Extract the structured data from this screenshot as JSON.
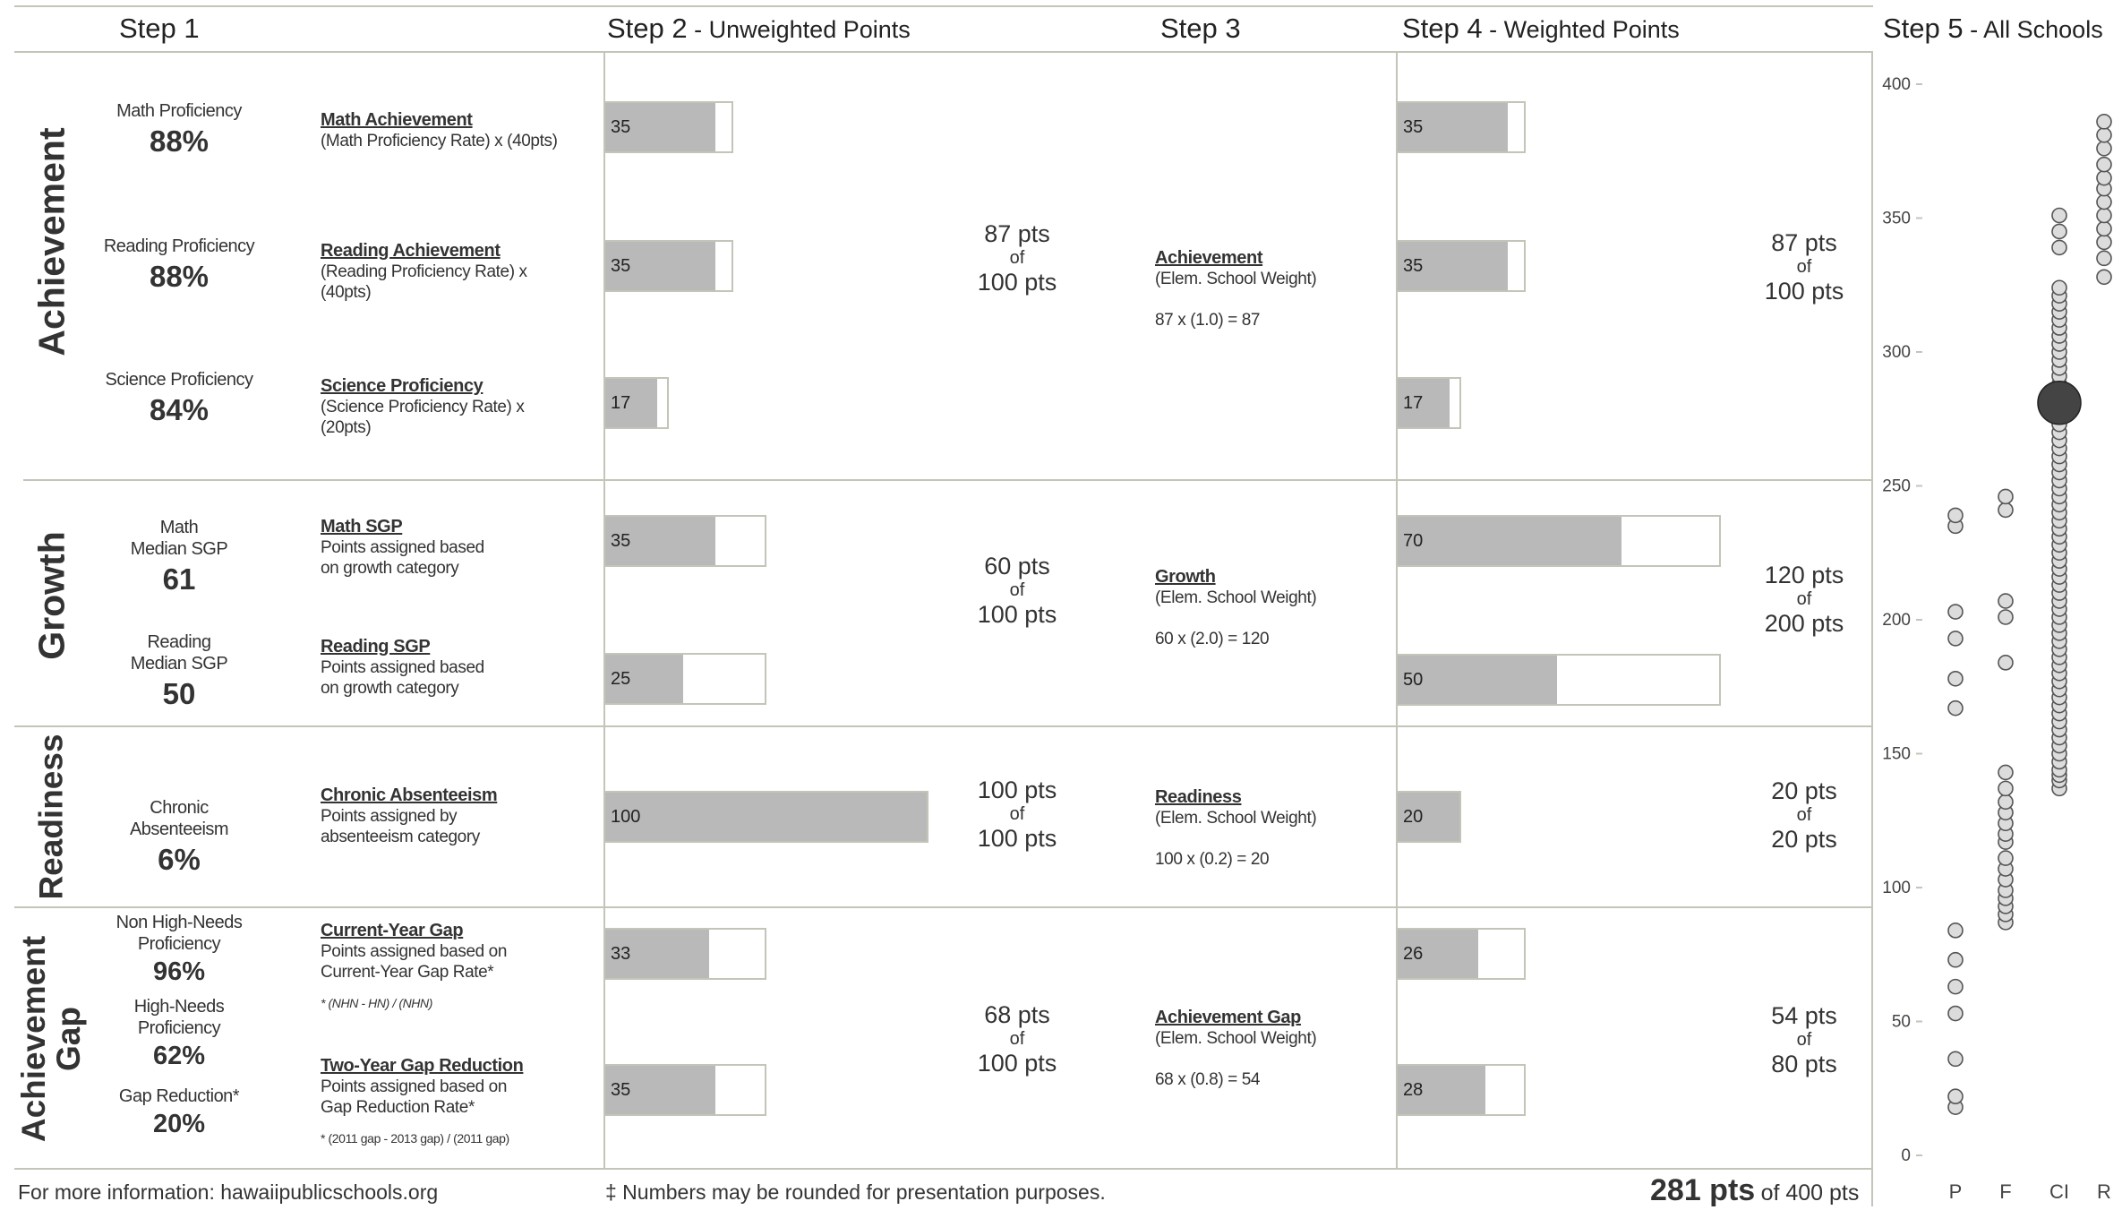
{
  "steps": {
    "s1": {
      "title": "Step 1",
      "sub": ""
    },
    "s2": {
      "title": "Step 2",
      "sub": " - Unweighted Points"
    },
    "s3": {
      "title": "Step 3",
      "sub": ""
    },
    "s4": {
      "title": "Step 4",
      "sub": " - Weighted Points"
    },
    "s5": {
      "title": "Step 5",
      "sub": " - All Schools"
    }
  },
  "sections": {
    "achievement": {
      "label": "Achievement",
      "metrics": [
        {
          "label": "Math Proficiency",
          "value": "88%"
        },
        {
          "label": "Reading Proficiency",
          "value": "88%"
        },
        {
          "label": "Science Proficiency",
          "value": "84%"
        }
      ],
      "calcs": [
        {
          "title": "Math Achievement",
          "desc": "(Math Proficiency Rate) x (40pts)"
        },
        {
          "title": "Reading Achievement",
          "desc": "(Reading Proficiency Rate) x (40pts)"
        },
        {
          "title": "Science Proficiency",
          "desc": "(Science Proficiency Rate) x (20pts)"
        }
      ],
      "unweighted": [
        {
          "label": "35",
          "value": 35,
          "max": 40
        },
        {
          "label": "35",
          "value": 35,
          "max": 40
        },
        {
          "label": "17",
          "value": 17,
          "max": 20
        }
      ],
      "unweighted_total": {
        "pts": "87 pts",
        "of": "of",
        "max": "100 pts"
      },
      "weight": {
        "title": "Achievement",
        "desc": "(Elem. School Weight)",
        "calc": "87 x (1.0) = 87"
      },
      "weighted": [
        {
          "label": "35",
          "value": 35,
          "max": 40
        },
        {
          "label": "35",
          "value": 35,
          "max": 40
        },
        {
          "label": "17",
          "value": 17,
          "max": 20
        }
      ],
      "weighted_total": {
        "pts": "87 pts",
        "of": "of",
        "max": "100 pts"
      }
    },
    "growth": {
      "label": "Growth",
      "metrics": [
        {
          "label": "Math\nMedian SGP",
          "value": "61"
        },
        {
          "label": "Reading\nMedian SGP",
          "value": "50"
        }
      ],
      "calcs": [
        {
          "title": "Math SGP",
          "desc": "Points assigned based\non growth category"
        },
        {
          "title": "Reading SGP",
          "desc": "Points assigned based\non growth category"
        }
      ],
      "unweighted": [
        {
          "label": "35",
          "value": 35,
          "max": 50
        },
        {
          "label": "25",
          "value": 25,
          "max": 50
        }
      ],
      "unweighted_total": {
        "pts": "60 pts",
        "of": "of",
        "max": "100 pts"
      },
      "weight": {
        "title": "Growth",
        "desc": "(Elem. School Weight)",
        "calc": "60 x (2.0) = 120"
      },
      "weighted": [
        {
          "label": "70",
          "value": 70,
          "max": 100
        },
        {
          "label": "50",
          "value": 50,
          "max": 100
        }
      ],
      "weighted_total": {
        "pts": "120 pts",
        "of": "of",
        "max": "200 pts"
      }
    },
    "readiness": {
      "label": "Readiness",
      "metrics": [
        {
          "label": "Chronic\nAbsenteeism",
          "value": "6%"
        }
      ],
      "calcs": [
        {
          "title": "Chronic Absenteeism",
          "desc": "Points assigned by\nabsenteeism category"
        }
      ],
      "unweighted": [
        {
          "label": "100",
          "value": 100,
          "max": 100
        }
      ],
      "unweighted_total": {
        "pts": "100 pts",
        "of": "of",
        "max": "100 pts"
      },
      "weight": {
        "title": "Readiness",
        "desc": "(Elem. School Weight)",
        "calc": "100 x (0.2) = 20"
      },
      "weighted": [
        {
          "label": "20",
          "value": 20,
          "max": 20
        }
      ],
      "weighted_total": {
        "pts": "20 pts",
        "of": "of",
        "max": "20 pts"
      }
    },
    "gap": {
      "label": "Achievement\nGap",
      "metrics": [
        {
          "label": "Non High-Needs\nProficiency",
          "value": "96%"
        },
        {
          "label": "High-Needs\nProficiency",
          "value": "62%"
        },
        {
          "label": "Gap Reduction*",
          "value": "20%"
        }
      ],
      "calcs": [
        {
          "title": "Current-Year Gap",
          "desc": "Points assigned based on\nCurrent-Year Gap Rate*",
          "note": "* (NHN - HN) / (NHN)"
        },
        {
          "title": "Two-Year Gap Reduction",
          "desc": "Points assigned based on\nGap Reduction Rate*",
          "note": "* (2011 gap - 2013 gap) / (2011 gap)"
        }
      ],
      "unweighted": [
        {
          "label": "33",
          "value": 33,
          "max": 50
        },
        {
          "label": "35",
          "value": 35,
          "max": 50
        }
      ],
      "unweighted_total": {
        "pts": "68 pts",
        "of": "of",
        "max": "100 pts"
      },
      "weight": {
        "title": "Achievement Gap",
        "desc": "(Elem. School Weight)",
        "calc": "68 x (0.8) = 54"
      },
      "weighted": [
        {
          "label": "26",
          "value": 26,
          "max": 40
        },
        {
          "label": "28",
          "value": 28,
          "max": 40
        }
      ],
      "weighted_total": {
        "pts": "54 pts",
        "of": "of",
        "max": "80 pts"
      }
    }
  },
  "footer": {
    "info": "For more information: hawaiipublicschools.org",
    "rounding": "‡ Numbers may be rounded for presentation purposes.",
    "total_pts": "281 pts",
    "total_of": "of 400 pts"
  },
  "colors": {
    "bar_fill": "#b9b9b9",
    "frame": "#c4c4b8",
    "highlight": "#444444"
  },
  "chart_data": {
    "type": "scatter",
    "title": "",
    "ylim": [
      0,
      400
    ],
    "yticks": [
      0,
      50,
      100,
      150,
      200,
      250,
      300,
      350,
      400
    ],
    "categories": [
      "P",
      "F",
      "CI",
      "R"
    ],
    "grid": false,
    "series": [
      {
        "category": "P",
        "values": [
          18,
          22,
          36,
          53,
          63,
          73,
          84,
          167,
          178,
          193,
          203,
          235,
          239
        ]
      },
      {
        "category": "F",
        "values": [
          87,
          90,
          93,
          96,
          99,
          103,
          107,
          111,
          117,
          120,
          124,
          128,
          132,
          137,
          143,
          184,
          201,
          207,
          241,
          246
        ]
      },
      {
        "category": "CI",
        "values": [
          137,
          140,
          142,
          144,
          147,
          150,
          153,
          156,
          159,
          162,
          165,
          168,
          171,
          174,
          177,
          180,
          183,
          186,
          189,
          192,
          195,
          198,
          201,
          204,
          207,
          210,
          213,
          216,
          219,
          222,
          225,
          228,
          231,
          234,
          237,
          240,
          243,
          246,
          249,
          252,
          255,
          258,
          261,
          264,
          267,
          270,
          273,
          276,
          279,
          282,
          285,
          288,
          291,
          294,
          297,
          300,
          303,
          306,
          309,
          312,
          315,
          318,
          321,
          324,
          339,
          345,
          351
        ]
      },
      {
        "category": "R",
        "values": [
          328,
          335,
          341,
          346,
          351,
          356,
          361,
          365,
          370,
          376,
          381,
          386
        ]
      }
    ],
    "highlight": {
      "category": "CI",
      "value": 281
    }
  }
}
